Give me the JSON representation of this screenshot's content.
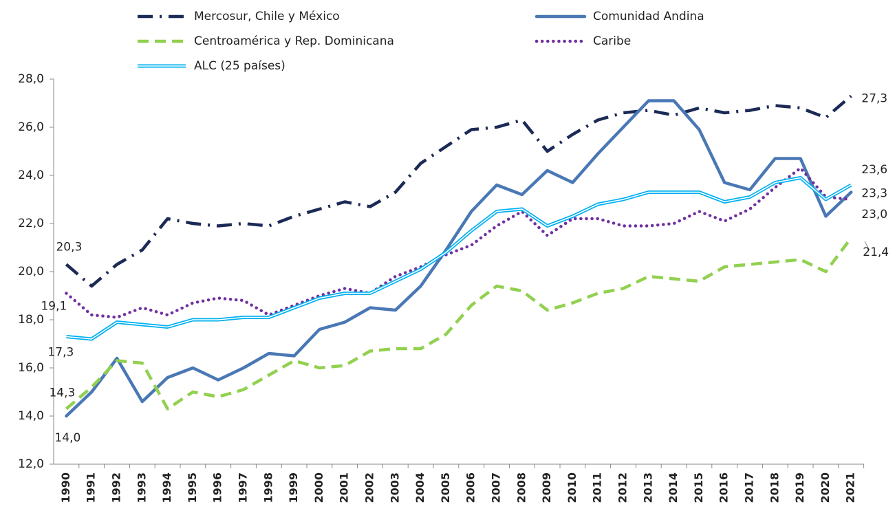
{
  "chart_data": {
    "type": "line",
    "categories": [
      "1990",
      "1991",
      "1992",
      "1993",
      "1994",
      "1995",
      "1996",
      "1997",
      "1998",
      "1999",
      "2000",
      "2001",
      "2002",
      "2003",
      "2004",
      "2005",
      "2006",
      "2007",
      "2008",
      "2009",
      "2010",
      "2011",
      "2012",
      "2013",
      "2014",
      "2015",
      "2016",
      "2017",
      "2018",
      "2019",
      "2020",
      "2021"
    ],
    "ylim": [
      12,
      28
    ],
    "yticks": [
      {
        "value": 12,
        "label": "12,0"
      },
      {
        "value": 14,
        "label": "14,0"
      },
      {
        "value": 16,
        "label": "16,0"
      },
      {
        "value": 18,
        "label": "18,0"
      },
      {
        "value": 20,
        "label": "20,0"
      },
      {
        "value": 22,
        "label": "22,0"
      },
      {
        "value": 24,
        "label": "24,0"
      },
      {
        "value": 26,
        "label": "26,0"
      },
      {
        "value": 28,
        "label": "28,0"
      }
    ],
    "grid": false,
    "legend": "top",
    "series": [
      {
        "name": "Mercosur, Chile y México",
        "color": "#1b2a56",
        "line_style": "dash-dot",
        "values": [
          20.3,
          19.4,
          20.3,
          20.9,
          22.2,
          22.0,
          21.9,
          22.0,
          21.9,
          22.3,
          22.6,
          22.9,
          22.7,
          23.3,
          24.5,
          25.2,
          25.9,
          26.0,
          26.3,
          25.0,
          25.7,
          26.3,
          26.6,
          26.7,
          26.5,
          26.8,
          26.6,
          26.7,
          26.9,
          26.8,
          26.4,
          27.3
        ],
        "value_labels": [
          "20,3",
          null,
          null,
          null,
          null,
          null,
          null,
          null,
          null,
          null,
          null,
          null,
          null,
          null,
          null,
          null,
          null,
          null,
          null,
          null,
          null,
          null,
          null,
          null,
          null,
          null,
          null,
          null,
          null,
          null,
          null,
          "27,3"
        ]
      },
      {
        "name": "Comunidad Andina",
        "color": "#4a78b5",
        "line_style": "solid",
        "values": [
          14.0,
          15.0,
          16.4,
          14.6,
          15.6,
          16.0,
          15.5,
          16.0,
          16.6,
          16.5,
          17.6,
          17.9,
          18.5,
          18.4,
          19.4,
          20.9,
          22.5,
          23.6,
          23.2,
          24.2,
          23.7,
          24.9,
          26.0,
          27.1,
          27.1,
          25.9,
          23.7,
          23.4,
          24.7,
          24.7,
          22.3,
          23.3
        ],
        "value_labels": [
          "14,0",
          null,
          null,
          null,
          null,
          null,
          null,
          null,
          null,
          null,
          null,
          null,
          null,
          null,
          null,
          null,
          null,
          null,
          null,
          null,
          null,
          null,
          null,
          null,
          null,
          null,
          null,
          null,
          null,
          null,
          null,
          "23,3"
        ]
      },
      {
        "name": "Centroamérica y Rep. Dominicana",
        "color": "#92d050",
        "line_style": "dash",
        "values": [
          14.3,
          15.2,
          16.3,
          16.2,
          14.3,
          15.0,
          14.8,
          15.1,
          15.7,
          16.3,
          16.0,
          16.1,
          16.7,
          16.8,
          16.8,
          17.4,
          18.6,
          19.4,
          19.2,
          18.4,
          18.7,
          19.1,
          19.3,
          19.8,
          19.7,
          19.6,
          20.2,
          20.3,
          20.4,
          20.5,
          20.0,
          21.4
        ],
        "value_labels": [
          "14,3",
          null,
          null,
          null,
          null,
          null,
          null,
          null,
          null,
          null,
          null,
          null,
          null,
          null,
          null,
          null,
          null,
          null,
          null,
          null,
          null,
          null,
          null,
          null,
          null,
          null,
          null,
          null,
          null,
          null,
          null,
          "21,4"
        ]
      },
      {
        "name": "Caribe",
        "color": "#7030a0",
        "line_style": "dot",
        "values": [
          19.1,
          18.2,
          18.1,
          18.5,
          18.2,
          18.7,
          18.9,
          18.8,
          18.2,
          18.6,
          19.0,
          19.3,
          19.1,
          19.8,
          20.2,
          20.7,
          21.1,
          21.9,
          22.5,
          21.5,
          22.2,
          22.2,
          21.9,
          21.9,
          22.0,
          22.5,
          22.1,
          22.6,
          23.5,
          24.3,
          23.1,
          23.0
        ],
        "value_labels": [
          "19,1",
          null,
          null,
          null,
          null,
          null,
          null,
          null,
          null,
          null,
          null,
          null,
          null,
          null,
          null,
          null,
          null,
          null,
          null,
          null,
          null,
          null,
          null,
          null,
          null,
          null,
          null,
          null,
          null,
          null,
          null,
          "23,0"
        ]
      },
      {
        "name": "ALC (25 países)",
        "color": "#00b0f0",
        "line_style": "double",
        "values": [
          17.3,
          17.2,
          17.9,
          17.8,
          17.7,
          18.0,
          18.0,
          18.1,
          18.1,
          18.5,
          18.9,
          19.1,
          19.1,
          19.6,
          20.1,
          20.8,
          21.7,
          22.5,
          22.6,
          21.9,
          22.3,
          22.8,
          23.0,
          23.3,
          23.3,
          23.3,
          22.9,
          23.1,
          23.7,
          23.9,
          23.0,
          23.6
        ],
        "value_labels": [
          "17,3",
          null,
          null,
          null,
          null,
          null,
          null,
          null,
          null,
          null,
          null,
          null,
          null,
          null,
          null,
          null,
          null,
          null,
          null,
          null,
          null,
          null,
          null,
          null,
          null,
          null,
          null,
          null,
          null,
          null,
          null,
          "23,6"
        ]
      }
    ]
  }
}
